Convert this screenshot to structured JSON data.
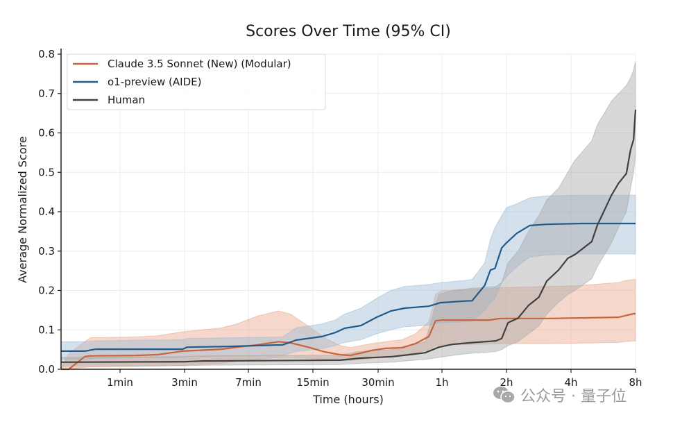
{
  "chart_data": {
    "type": "line",
    "title": "Scores Over Time (95% CI)",
    "xlabel": "Time (hours)",
    "ylabel": "Average Normalized Score",
    "x_scale": "log",
    "x_unit": "minutes",
    "x_ticks": [
      {
        "value": 1,
        "label": "1min"
      },
      {
        "value": 3,
        "label": "3min"
      },
      {
        "value": 7,
        "label": "7min"
      },
      {
        "value": 15,
        "label": "15min"
      },
      {
        "value": 30,
        "label": "30min"
      },
      {
        "value": 60,
        "label": "1h"
      },
      {
        "value": 120,
        "label": "2h"
      },
      {
        "value": 240,
        "label": "4h"
      },
      {
        "value": 480,
        "label": "8h"
      }
    ],
    "xlim": [
      0.45,
      480
    ],
    "ylim": [
      0,
      0.8
    ],
    "y_ticks": [
      0.0,
      0.1,
      0.2,
      0.3,
      0.4,
      0.5,
      0.6,
      0.7,
      0.8
    ],
    "y_tick_labels": [
      "0.0",
      "0.1",
      "0.2",
      "0.3",
      "0.4",
      "0.5",
      "0.6",
      "0.7",
      "0.8"
    ],
    "grid": true,
    "legend_position": "top-left",
    "series": [
      {
        "name": "Claude 3.5 Sonnet (New) (Modular)",
        "color": "#c8643c",
        "band_color": "#e8a98c",
        "x": [
          0.45,
          0.5,
          0.62,
          0.67,
          1.3,
          1.9,
          2.9,
          4.9,
          6.0,
          7.8,
          10.0,
          11.5,
          14.2,
          17.0,
          20.0,
          22.3,
          25.0,
          28.0,
          32.6,
          39.0,
          45.0,
          52.0,
          56.0,
          60.0,
          100,
          112,
          190,
          250,
          400,
          430,
          470,
          480
        ],
        "values": [
          0.0,
          0.0,
          0.032,
          0.034,
          0.035,
          0.037,
          0.046,
          0.051,
          0.056,
          0.062,
          0.07,
          0.067,
          0.056,
          0.044,
          0.037,
          0.035,
          0.041,
          0.048,
          0.053,
          0.055,
          0.065,
          0.083,
          0.123,
          0.125,
          0.125,
          0.129,
          0.129,
          0.13,
          0.132,
          0.136,
          0.141,
          0.141
        ],
        "ci_upper": [
          0.0,
          0.04,
          0.07,
          0.08,
          0.082,
          0.085,
          0.095,
          0.105,
          0.115,
          0.135,
          0.148,
          0.14,
          0.11,
          0.08,
          0.06,
          0.055,
          0.06,
          0.065,
          0.07,
          0.075,
          0.09,
          0.12,
          0.19,
          0.2,
          0.205,
          0.207,
          0.21,
          0.212,
          0.22,
          0.225,
          0.228,
          0.228
        ],
        "ci_lower": [
          0.0,
          0.0,
          0.005,
          0.006,
          0.007,
          0.008,
          0.01,
          0.015,
          0.02,
          0.025,
          0.03,
          0.03,
          0.028,
          0.025,
          0.022,
          0.022,
          0.025,
          0.028,
          0.032,
          0.035,
          0.042,
          0.05,
          0.06,
          0.062,
          0.064,
          0.065,
          0.065,
          0.066,
          0.068,
          0.07,
          0.072,
          0.072
        ]
      },
      {
        "name": "o1-preview (AIDE)",
        "color": "#1f5a8a",
        "band_color": "#9fbdd6",
        "x": [
          0.45,
          0.62,
          0.72,
          2.9,
          3.1,
          5.5,
          10.5,
          12.3,
          16.5,
          19.0,
          21.0,
          25.0,
          29.5,
          34.5,
          40.0,
          52.0,
          59.0,
          76.0,
          83.0,
          95.0,
          101,
          106,
          114,
          120,
          134,
          154,
          184,
          270,
          480
        ],
        "values": [
          0.046,
          0.046,
          0.051,
          0.051,
          0.056,
          0.058,
          0.062,
          0.074,
          0.083,
          0.093,
          0.104,
          0.111,
          0.132,
          0.148,
          0.155,
          0.16,
          0.169,
          0.173,
          0.174,
          0.213,
          0.252,
          0.256,
          0.308,
          0.321,
          0.345,
          0.365,
          0.368,
          0.37,
          0.37
        ],
        "ci_upper": [
          0.07,
          0.07,
          0.072,
          0.075,
          0.078,
          0.08,
          0.082,
          0.105,
          0.115,
          0.125,
          0.14,
          0.155,
          0.18,
          0.2,
          0.21,
          0.215,
          0.22,
          0.225,
          0.228,
          0.27,
          0.33,
          0.36,
          0.39,
          0.41,
          0.42,
          0.435,
          0.44,
          0.442,
          0.442
        ],
        "ci_lower": [
          0.025,
          0.025,
          0.028,
          0.03,
          0.032,
          0.033,
          0.035,
          0.045,
          0.052,
          0.06,
          0.068,
          0.075,
          0.09,
          0.1,
          0.108,
          0.112,
          0.118,
          0.12,
          0.122,
          0.15,
          0.17,
          0.18,
          0.22,
          0.235,
          0.26,
          0.285,
          0.29,
          0.293,
          0.293
        ]
      },
      {
        "name": "Human",
        "color": "#404040",
        "band_color": "#a8a8a8",
        "x": [
          0.45,
          3.0,
          3.8,
          20.0,
          24.5,
          35.0,
          42.0,
          50.0,
          58.0,
          67.0,
          80.0,
          107,
          114,
          122,
          136,
          152,
          170,
          185,
          210,
          232,
          250,
          300,
          318,
          370,
          400,
          435,
          455,
          470,
          480
        ],
        "values": [
          0.018,
          0.019,
          0.021,
          0.023,
          0.028,
          0.032,
          0.037,
          0.042,
          0.056,
          0.063,
          0.067,
          0.072,
          0.078,
          0.118,
          0.13,
          0.162,
          0.183,
          0.224,
          0.252,
          0.282,
          0.291,
          0.324,
          0.365,
          0.441,
          0.472,
          0.497,
          0.557,
          0.583,
          0.659
        ],
        "ci_upper": [
          0.03,
          0.032,
          0.034,
          0.036,
          0.045,
          0.05,
          0.06,
          0.07,
          0.19,
          0.2,
          0.205,
          0.21,
          0.22,
          0.27,
          0.3,
          0.35,
          0.39,
          0.43,
          0.46,
          0.5,
          0.53,
          0.58,
          0.62,
          0.68,
          0.7,
          0.72,
          0.74,
          0.76,
          0.78
        ],
        "ci_lower": [
          0.008,
          0.009,
          0.01,
          0.012,
          0.015,
          0.018,
          0.022,
          0.025,
          0.03,
          0.035,
          0.04,
          0.045,
          0.05,
          0.06,
          0.07,
          0.09,
          0.11,
          0.14,
          0.17,
          0.19,
          0.2,
          0.23,
          0.26,
          0.32,
          0.36,
          0.4,
          0.46,
          0.5,
          0.54
        ]
      }
    ]
  },
  "watermark": {
    "text": "公众号 · 量子位",
    "icon": "wechat-icon"
  }
}
